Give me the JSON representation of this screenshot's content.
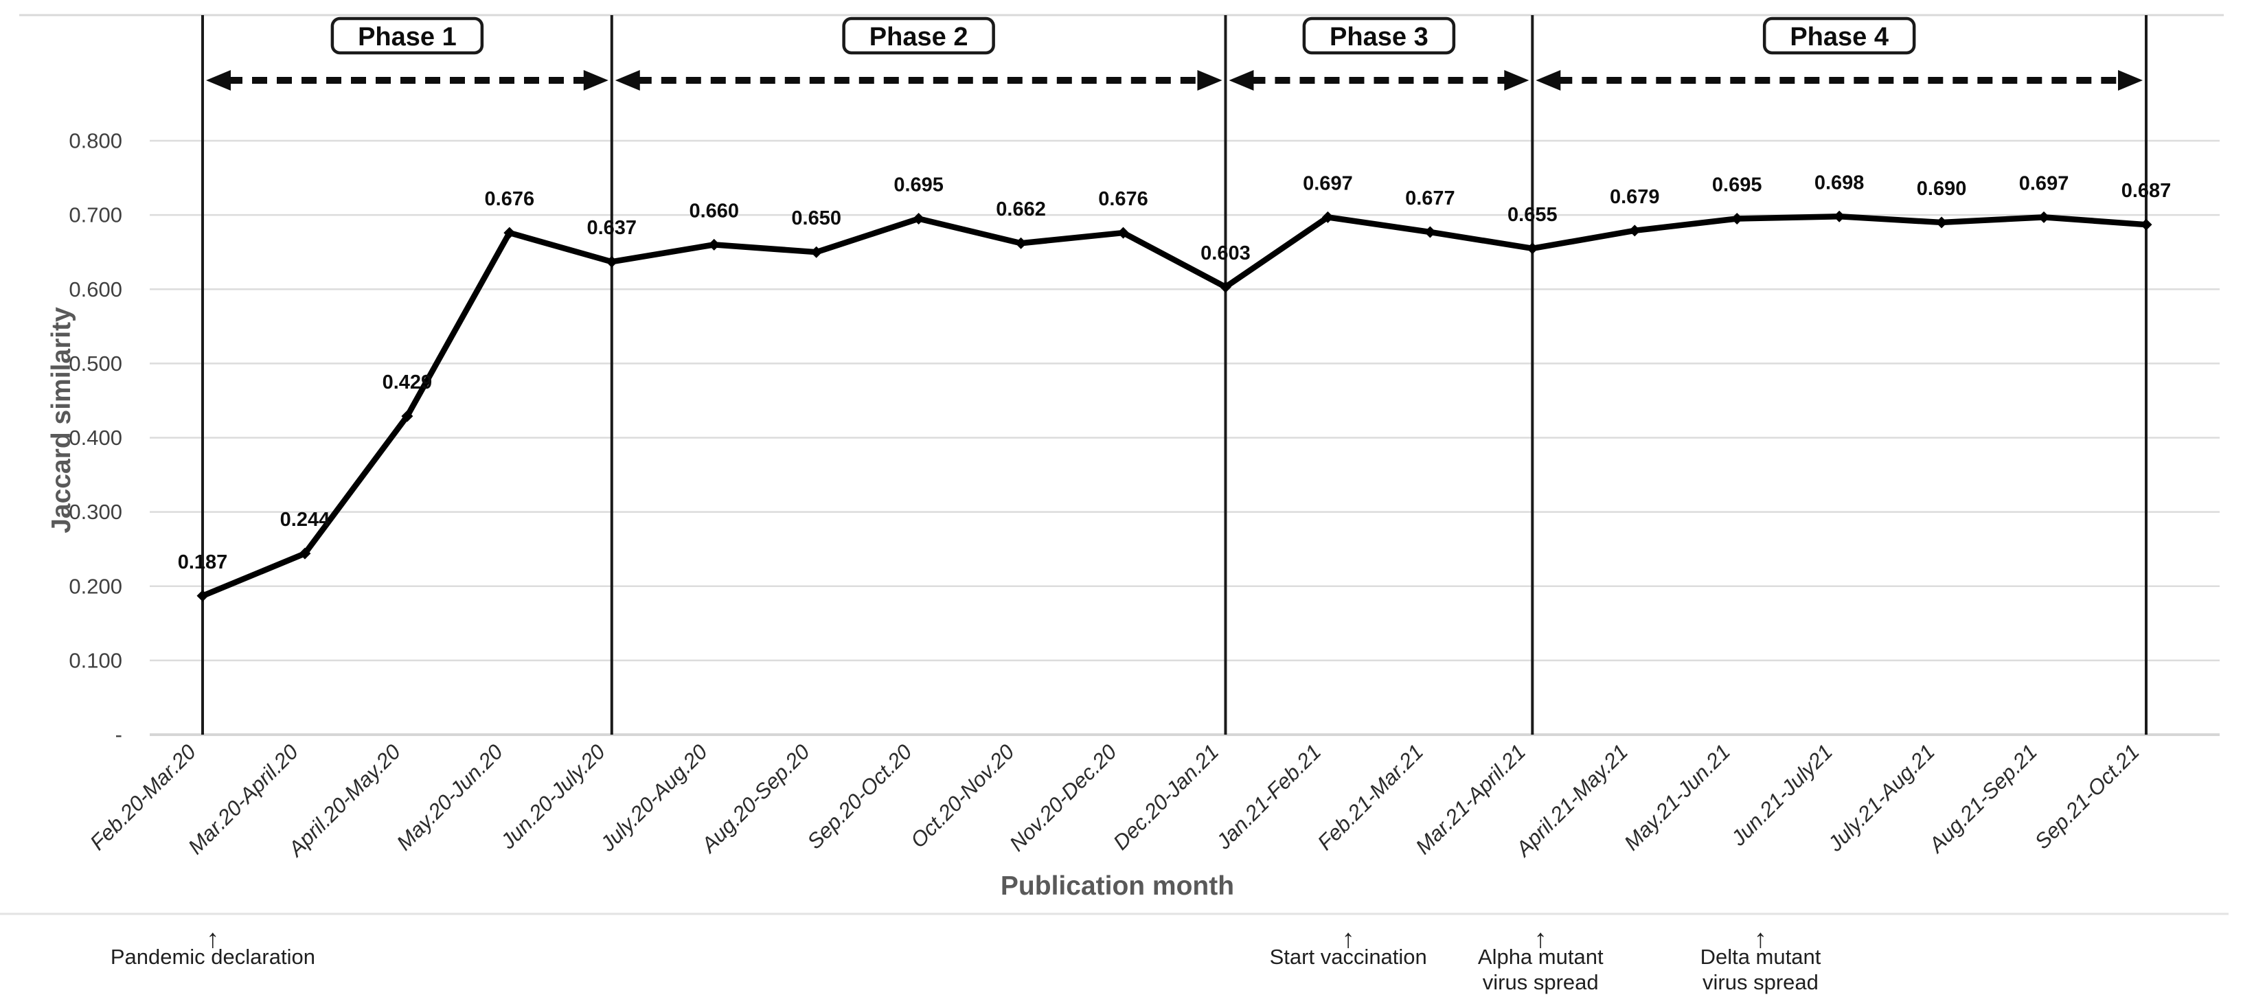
{
  "figure": {
    "background": "#ffffff",
    "line_color": "#000000",
    "marker_color": "#000000",
    "gridline_color": "#dcdcdc",
    "zero_line_color": "#d6d6d6",
    "top_border_color": "#d9d9d9",
    "phase_line_color": "#1a1a1a",
    "arrow_color": "#0d0d0d",
    "tick_text_color": "#404040",
    "category_text_color": "#2b2b2b",
    "axis_title_color": "#595959",
    "data_label_color": "#0d0d0d",
    "annotation_text_color": "#1f1f1f",
    "footer_divider_color": "#e3e3e3"
  },
  "chart_data": {
    "type": "line",
    "title": "",
    "xlabel": "Publication month",
    "ylabel": "Jaccard similarity",
    "ylim": [
      0,
      0.9
    ],
    "grid": true,
    "legend": "none",
    "marker": "diamond",
    "categories": [
      "Feb.20-Mar.20",
      "Mar.20-April.20",
      "April.20-May.20",
      "May.20-Jun.20",
      "Jun.20-July.20",
      "July.20-Aug.20",
      "Aug.20-Sep.20",
      "Sep.20-Oct.20",
      "Oct.20-Nov.20",
      "Nov.20-Dec.20",
      "Dec.20-Jan.21",
      "Jan.21-Feb.21",
      "Feb.21-Mar.21",
      "Mar.21-April.21",
      "April.21-May.21",
      "May.21-Jun.21",
      "Jun.21-July21",
      "July.21-Aug.21",
      "Aug.21-Sep.21",
      "Sep.21-Oct.21"
    ],
    "series": [
      {
        "name": "Jaccard similarity",
        "values": [
          0.187,
          0.244,
          0.429,
          0.676,
          0.637,
          0.66,
          0.65,
          0.695,
          0.662,
          0.676,
          0.603,
          0.697,
          0.677,
          0.655,
          0.679,
          0.695,
          0.698,
          0.69,
          0.697,
          0.687
        ]
      }
    ],
    "value_label_decimals": 3,
    "yticks": [
      {
        "label": "0.800",
        "value": 0.8
      },
      {
        "label": "0.700",
        "value": 0.7
      },
      {
        "label": "0.600",
        "value": 0.6
      },
      {
        "label": "0.500",
        "value": 0.5
      },
      {
        "label": "0.400",
        "value": 0.4
      },
      {
        "label": "0.300",
        "value": 0.3
      },
      {
        "label": "0.200",
        "value": 0.2
      },
      {
        "label": "0.100",
        "value": 0.1
      },
      {
        "label": "-",
        "value": 0.0
      }
    ],
    "phases": [
      {
        "label": "Phase 1",
        "start_index": 0,
        "end_index": 4
      },
      {
        "label": "Phase 2",
        "start_index": 4,
        "end_index": 10
      },
      {
        "label": "Phase 3",
        "start_index": 10,
        "end_index": 13
      },
      {
        "label": "Phase 4",
        "start_index": 13,
        "end_index": 19
      }
    ],
    "event_annotations": [
      {
        "arrow": "↑",
        "x_index": 0.1,
        "lines": [
          "Pandemic declaration"
        ]
      },
      {
        "arrow": "↑",
        "x_index": 11.2,
        "lines": [
          "Start vaccination"
        ]
      },
      {
        "arrow": "↑",
        "x_index": 13.08,
        "lines": [
          "Alpha mutant",
          "virus spread"
        ]
      },
      {
        "arrow": "↑",
        "x_index": 15.23,
        "lines": [
          "Delta mutant",
          "virus spread"
        ]
      }
    ]
  }
}
